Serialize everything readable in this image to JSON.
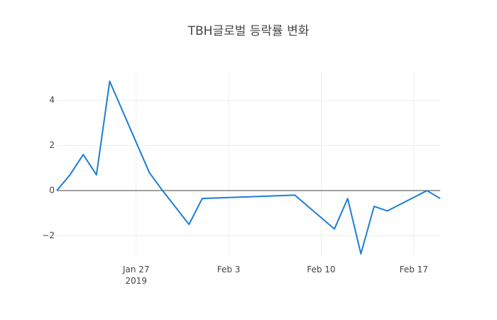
{
  "chart_data": {
    "type": "line",
    "title": "TBH글로벌 등락률 변화",
    "x": [
      "2019-01-21",
      "2019-01-22",
      "2019-01-23",
      "2019-01-24",
      "2019-01-25",
      "2019-01-28",
      "2019-01-29",
      "2019-01-31",
      "2019-02-01",
      "2019-02-08",
      "2019-02-11",
      "2019-02-12",
      "2019-02-13",
      "2019-02-14",
      "2019-02-15",
      "2019-02-18",
      "2019-02-19"
    ],
    "series": [
      {
        "color": "#1c7ed6",
        "values": [
          0,
          0.7,
          1.6,
          0.7,
          4.85,
          0.8,
          0,
          -1.5,
          -0.35,
          -0.2,
          -1.7,
          -0.35,
          -2.8,
          -0.7,
          -0.9,
          0,
          -0.35
        ]
      }
    ],
    "xlim": [
      "2019-01-21",
      "2019-02-19"
    ],
    "xticks": [
      {
        "value": "2019-01-27",
        "label": "Jan 27\n2019"
      },
      {
        "value": "2019-02-03",
        "label": "Feb 3"
      },
      {
        "value": "2019-02-10",
        "label": "Feb 10"
      },
      {
        "value": "2019-02-17",
        "label": "Feb 17"
      }
    ],
    "ylim": [
      -2.9,
      5.3
    ],
    "yticks": [
      {
        "value": -2,
        "label": "−2"
      },
      0,
      2,
      4
    ],
    "grid": true,
    "zeroline": true
  }
}
